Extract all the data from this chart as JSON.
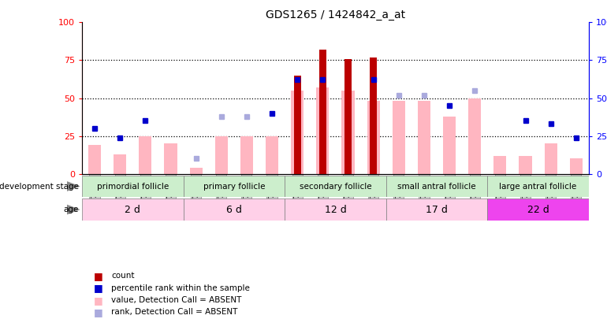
{
  "title": "GDS1265 / 1424842_a_at",
  "samples": [
    "GSM75708",
    "GSM75710",
    "GSM75712",
    "GSM75714",
    "GSM74060",
    "GSM74061",
    "GSM74062",
    "GSM74063",
    "GSM75715",
    "GSM75717",
    "GSM75719",
    "GSM75720",
    "GSM75722",
    "GSM75724",
    "GSM75725",
    "GSM75727",
    "GSM75729",
    "GSM75730",
    "GSM75732",
    "GSM75733"
  ],
  "bar_red_heights": [
    0,
    0,
    0,
    0,
    0,
    0,
    0,
    0,
    65,
    82,
    76,
    77,
    0,
    0,
    0,
    0,
    0,
    0,
    0,
    0
  ],
  "bar_pink_heights": [
    19,
    13,
    25,
    20,
    4,
    25,
    25,
    25,
    55,
    57,
    55,
    48,
    48,
    48,
    38,
    50,
    12,
    12,
    20,
    10
  ],
  "dot_blue_y": [
    30,
    24,
    35,
    null,
    null,
    null,
    null,
    40,
    62,
    62,
    null,
    62,
    null,
    null,
    45,
    null,
    null,
    35,
    33,
    24
  ],
  "dot_lightblue_y": [
    null,
    null,
    null,
    null,
    10,
    38,
    38,
    null,
    null,
    null,
    null,
    null,
    52,
    52,
    null,
    55,
    null,
    null,
    null,
    null
  ],
  "groups": [
    {
      "label": "primordial follicle",
      "start": 0,
      "end": 3
    },
    {
      "label": "primary follicle",
      "start": 4,
      "end": 7
    },
    {
      "label": "secondary follicle",
      "start": 8,
      "end": 11
    },
    {
      "label": "small antral follicle",
      "start": 12,
      "end": 15
    },
    {
      "label": "large antral follicle",
      "start": 16,
      "end": 19
    }
  ],
  "ages": [
    "2 d",
    "6 d",
    "12 d",
    "17 d",
    "22 d"
  ],
  "ylim": [
    0,
    100
  ],
  "yticks": [
    0,
    25,
    50,
    75,
    100
  ],
  "bar_red_color": "#BB0000",
  "bar_pink_color": "#FFB6C1",
  "dot_blue_color": "#0000CC",
  "dot_lightblue_color": "#AAAADD",
  "dev_stage_color": "#CCEECC",
  "age_colors": [
    "#FFD0E8",
    "#FFD0E8",
    "#FFD0E8",
    "#FFD0E8",
    "#EE44EE"
  ],
  "tick_bg_color": "#CCCCCC"
}
